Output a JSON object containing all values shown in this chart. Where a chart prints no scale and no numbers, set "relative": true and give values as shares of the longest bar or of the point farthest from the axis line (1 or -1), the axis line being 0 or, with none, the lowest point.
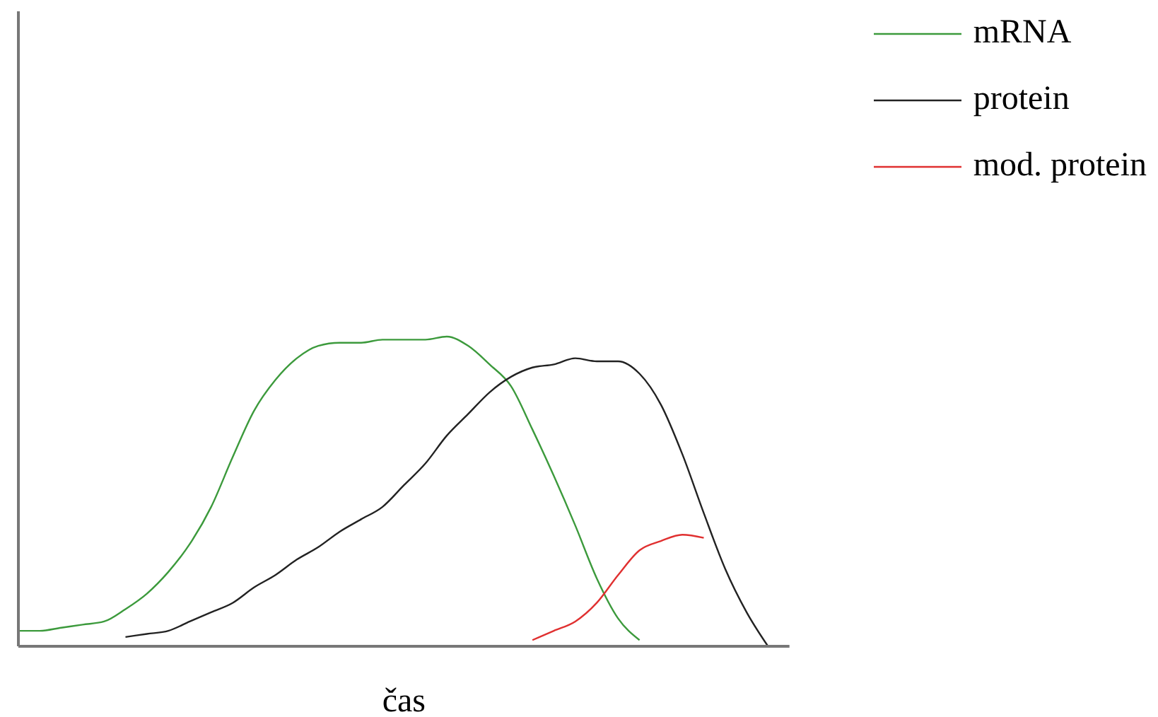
{
  "chart_data": {
    "type": "line",
    "relative": true,
    "xlabel": "čas",
    "legend": "top right",
    "marker": "none",
    "line_style": "solid",
    "grid": false,
    "categories": [
      null,
      null,
      null,
      null,
      null,
      null,
      null,
      null,
      null,
      null,
      null,
      null,
      null,
      null,
      null,
      null,
      null,
      null,
      null,
      null,
      null,
      null,
      null,
      null,
      null,
      null,
      null,
      null,
      null,
      null,
      null,
      null,
      null,
      null,
      null,
      null,
      null
    ],
    "series": [
      {
        "name": "mRNA",
        "color": "#3c9a3c",
        "values": [
          0.05,
          0.05,
          0.06,
          0.07,
          0.08,
          0.12,
          0.17,
          0.24,
          0.33,
          0.45,
          0.61,
          0.76,
          0.86,
          0.93,
          0.97,
          0.98,
          0.98,
          0.99,
          0.99,
          0.99,
          1,
          0.97,
          0.91,
          0.84,
          0.7,
          0.55,
          0.39,
          0.22,
          0.09,
          0.02,
          null,
          null,
          null,
          null,
          null,
          null,
          null
        ]
      },
      {
        "name": "protein",
        "color": "#222222",
        "values": [
          null,
          null,
          null,
          null,
          null,
          0.03,
          0.04,
          0.05,
          0.08,
          0.11,
          0.14,
          0.19,
          0.23,
          0.28,
          0.32,
          0.37,
          0.41,
          0.45,
          0.52,
          0.59,
          0.68,
          0.75,
          0.82,
          0.87,
          0.9,
          0.91,
          0.93,
          0.92,
          0.92,
          0.88,
          0.78,
          0.62,
          0.43,
          0.25,
          0.11,
          0,
          null
        ]
      },
      {
        "name": "mod. protein",
        "color": "#e03030",
        "values": [
          null,
          null,
          null,
          null,
          null,
          null,
          null,
          null,
          null,
          null,
          null,
          null,
          null,
          null,
          null,
          null,
          null,
          null,
          null,
          null,
          null,
          null,
          null,
          null,
          0.02,
          0.05,
          0.08,
          0.14,
          0.23,
          0.31,
          0.34,
          0.36,
          0.35,
          null,
          null,
          null,
          null
        ]
      }
    ]
  }
}
